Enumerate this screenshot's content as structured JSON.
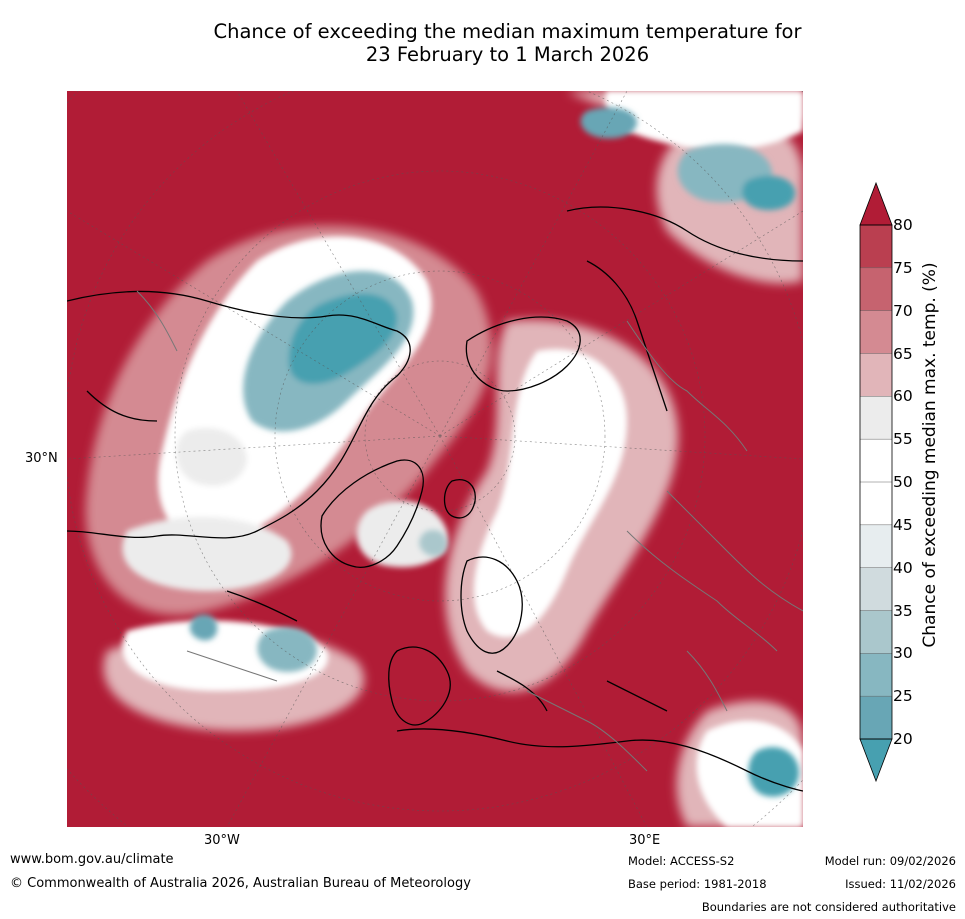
{
  "title": {
    "line1": "Chance of exceeding the median maximum temperature for",
    "line2": "23 February to 1 March 2026"
  },
  "map": {
    "projection": "north-polar-stereographic",
    "lat_label": "30°N",
    "lon_labels": [
      "30°W",
      "30°E"
    ],
    "dominant_color": "#b11c36"
  },
  "colorbar": {
    "label": "Chance of exceeding median max. temp. (%)",
    "ticks": [
      "80",
      "75",
      "70",
      "65",
      "60",
      "55",
      "50",
      "45",
      "40",
      "35",
      "30",
      "25",
      "20"
    ],
    "colors": [
      "#ba3f50",
      "#c6636f",
      "#d48a92",
      "#e1b5b9",
      "#ececec",
      "#ffffff",
      "#ffffff",
      "#e7edef",
      "#d0dbde",
      "#aac7cc",
      "#87b7c1",
      "#68a6b5"
    ],
    "over_color": "#b11c36",
    "under_color": "#47a0b0"
  },
  "footer": {
    "website": "www.bom.gov.au/climate",
    "copyright": "© Commonwealth of Australia 2026, Australian Bureau of Meteorology",
    "model": "Model: ACCESS-S2",
    "base_period": "Base period: 1981-2018",
    "model_run": "Model run: 09/02/2026",
    "issued": "Issued: 11/02/2026",
    "disclaimer": "Boundaries are not considered authoritative"
  }
}
